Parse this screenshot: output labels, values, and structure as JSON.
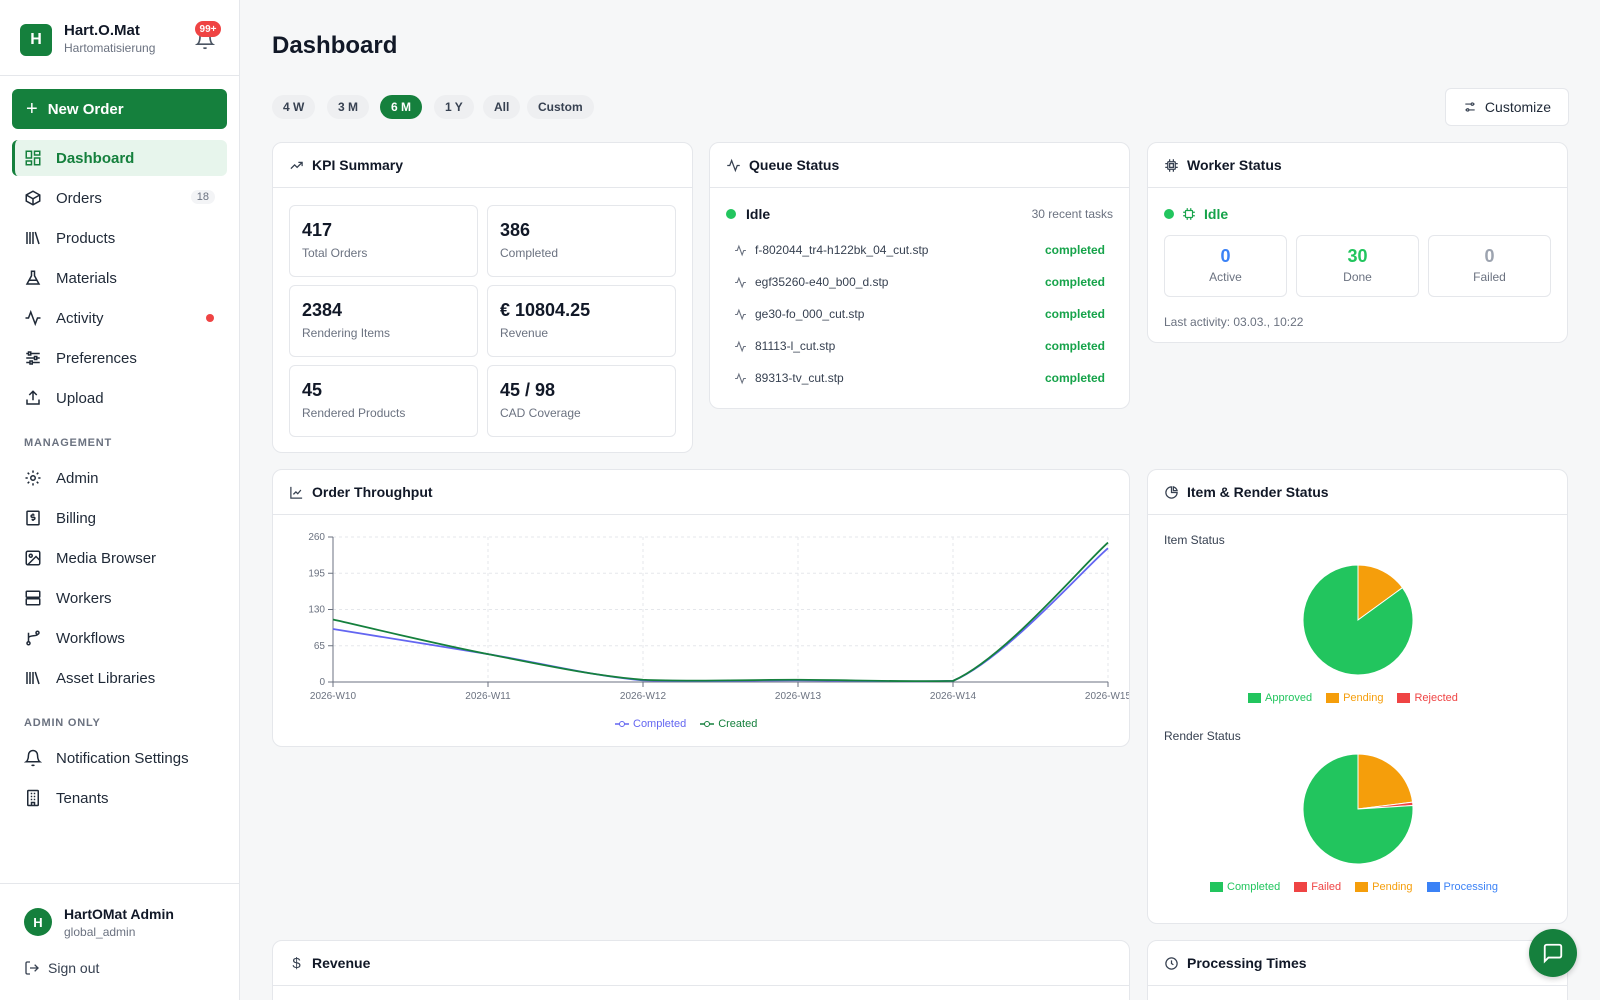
{
  "brand": {
    "name": "Hart.O.Mat",
    "subtitle": "Hartomatisierung",
    "logo_letter": "H",
    "notifications": "99+"
  },
  "sidebar": {
    "new_order": "New Order",
    "items": [
      {
        "label": "Dashboard",
        "icon": "dashboard-icon"
      },
      {
        "label": "Orders",
        "icon": "box-icon",
        "count": "18"
      },
      {
        "label": "Products",
        "icon": "library-icon"
      },
      {
        "label": "Materials",
        "icon": "flask-icon"
      },
      {
        "label": "Activity",
        "icon": "activity-icon"
      },
      {
        "label": "Preferences",
        "icon": "sliders-icon"
      },
      {
        "label": "Upload",
        "icon": "upload-icon"
      }
    ],
    "management_title": "MANAGEMENT",
    "management": [
      {
        "label": "Admin",
        "icon": "gear-icon"
      },
      {
        "label": "Billing",
        "icon": "receipt-icon"
      },
      {
        "label": "Media Browser",
        "icon": "image-icon"
      },
      {
        "label": "Workers",
        "icon": "server-icon"
      },
      {
        "label": "Workflows",
        "icon": "workflow-icon"
      },
      {
        "label": "Asset Libraries",
        "icon": "library-icon"
      }
    ],
    "admin_title": "ADMIN ONLY",
    "admin": [
      {
        "label": "Notification Settings",
        "icon": "bell-icon"
      },
      {
        "label": "Tenants",
        "icon": "building-icon"
      }
    ]
  },
  "user": {
    "initial": "H",
    "name": "HartOMat Admin",
    "role": "global_admin",
    "sign_out": "Sign out"
  },
  "header": {
    "title": "Dashboard",
    "customize": "Customize"
  },
  "ranges": [
    "4 W",
    "3 M",
    "6 M",
    "1 Y",
    "All",
    "Custom"
  ],
  "kpi": {
    "title": "KPI Summary",
    "items": [
      {
        "value": "417",
        "label": "Total Orders"
      },
      {
        "value": "386",
        "label": "Completed"
      },
      {
        "value": "2384",
        "label": "Rendering Items"
      },
      {
        "value": "€ 10804.25",
        "label": "Revenue"
      },
      {
        "value": "45",
        "label": "Rendered Products"
      },
      {
        "value": "45 / 98",
        "label": "CAD Coverage"
      }
    ]
  },
  "queue": {
    "title": "Queue Status",
    "status": "Idle",
    "recent": "30 recent tasks",
    "tasks": [
      {
        "name": "f-802044_tr4-h122bk_04_cut.stp",
        "state": "completed"
      },
      {
        "name": "egf35260-e40_b00_d.stp",
        "state": "completed"
      },
      {
        "name": "ge30-fo_000_cut.stp",
        "state": "completed"
      },
      {
        "name": "81113-l_cut.stp",
        "state": "completed"
      },
      {
        "name": "89313-tv_cut.stp",
        "state": "completed"
      }
    ]
  },
  "worker": {
    "title": "Worker Status",
    "status": "Idle",
    "stats": [
      {
        "value": "0",
        "label": "Active",
        "color": "#3b82f6"
      },
      {
        "value": "30",
        "label": "Done",
        "color": "#22c55e"
      },
      {
        "value": "0",
        "label": "Failed",
        "color": "#9ca3af"
      }
    ],
    "last_activity": "Last activity: 03.03., 10:22"
  },
  "throughput": {
    "title": "Order Throughput"
  },
  "status_card": {
    "title": "Item & Render Status",
    "item_title": "Item Status",
    "render_title": "Render Status"
  },
  "revenue": {
    "title": "Revenue"
  },
  "processing": {
    "title": "Processing Times"
  },
  "chart_data": [
    {
      "type": "line",
      "x": [
        "2026-W10",
        "2026-W11",
        "2026-W12",
        "2026-W13",
        "2026-W14",
        "2026-W15"
      ],
      "series": [
        {
          "name": "Completed",
          "color": "#6366f1",
          "values": [
            95,
            50,
            3,
            3,
            2,
            240
          ]
        },
        {
          "name": "Created",
          "color": "#15803d",
          "values": [
            112,
            50,
            4,
            4,
            2,
            250
          ]
        }
      ],
      "yticks": [
        0,
        65,
        130,
        195,
        260
      ],
      "ylim": [
        0,
        260
      ],
      "grid": true,
      "legend": "bottom"
    },
    {
      "type": "pie",
      "labels": [
        "Approved",
        "Pending",
        "Rejected"
      ],
      "values": [
        85,
        15,
        0
      ],
      "colors": [
        "#22c55e",
        "#f59e0b",
        "#ef4444"
      ],
      "title": "Item Status",
      "legend": "bottom"
    },
    {
      "type": "pie",
      "labels": [
        "Completed",
        "Failed",
        "Pending",
        "Processing"
      ],
      "values": [
        76,
        1,
        23,
        0
      ],
      "colors": [
        "#22c55e",
        "#ef4444",
        "#f59e0b",
        "#3b82f6"
      ],
      "title": "Render Status",
      "legend": "bottom"
    }
  ]
}
